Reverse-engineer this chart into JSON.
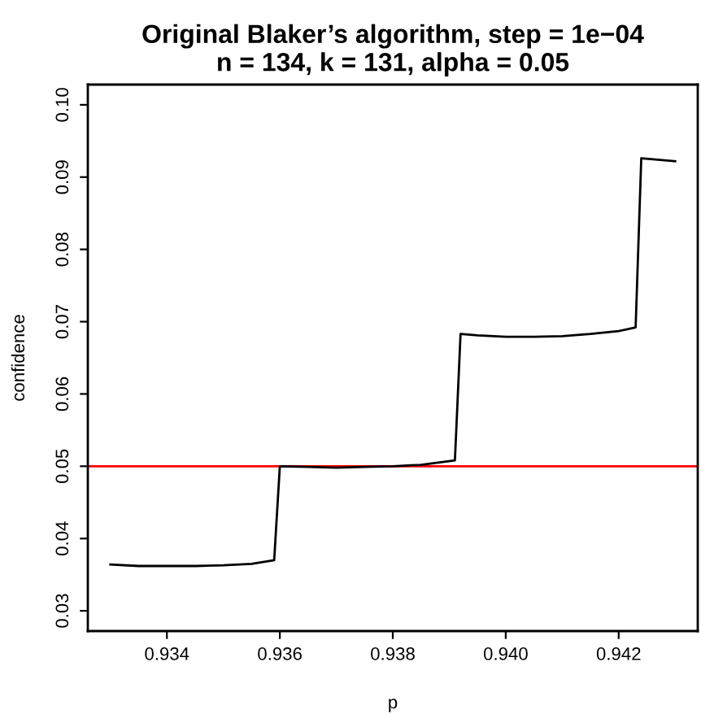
{
  "chart_data": {
    "type": "line",
    "title": "Original Blaker’s algorithm, step = 1e−04\nn = 134, k = 131, alpha = 0.05",
    "xlabel": "p",
    "ylabel": "confidence",
    "x": [
      0.933,
      0.9335,
      0.934,
      0.9345,
      0.935,
      0.9355,
      0.9359,
      0.936,
      0.9365,
      0.937,
      0.9375,
      0.938,
      0.9385,
      0.9391,
      0.9392,
      0.9395,
      0.94,
      0.9405,
      0.941,
      0.9415,
      0.942,
      0.9423,
      0.9424,
      0.943
    ],
    "series": [
      {
        "color": "#000000",
        "values": [
          0.0364,
          0.0362,
          0.0362,
          0.0362,
          0.0363,
          0.0365,
          0.037,
          0.05,
          0.0499,
          0.0498,
          0.0499,
          0.05,
          0.0502,
          0.0508,
          0.0683,
          0.0681,
          0.0679,
          0.0679,
          0.068,
          0.0683,
          0.0687,
          0.0692,
          0.0926,
          0.0922
        ]
      }
    ],
    "xlim": [
      0.9326,
      0.9434
    ],
    "ylim": [
      0.0272,
      0.1028
    ],
    "xticks": [
      {
        "value": 0.934,
        "label": "0.934"
      },
      {
        "value": 0.936,
        "label": "0.936"
      },
      {
        "value": 0.938,
        "label": "0.938"
      },
      {
        "value": 0.94,
        "label": "0.940"
      },
      {
        "value": 0.942,
        "label": "0.942"
      }
    ],
    "yticks": [
      {
        "value": 0.03,
        "label": "0.03"
      },
      {
        "value": 0.04,
        "label": "0.04"
      },
      {
        "value": 0.05,
        "label": "0.05"
      },
      {
        "value": 0.06,
        "label": "0.06"
      },
      {
        "value": 0.07,
        "label": "0.07"
      },
      {
        "value": 0.08,
        "label": "0.08"
      },
      {
        "value": 0.09,
        "label": "0.09"
      },
      {
        "value": 0.1,
        "label": "0.10"
      }
    ],
    "ref_lines": [
      {
        "axis": "y",
        "value": 0.05,
        "color": "#ff0000"
      }
    ],
    "grid": false,
    "legend": false,
    "marker": "none",
    "line_style": "solid"
  }
}
